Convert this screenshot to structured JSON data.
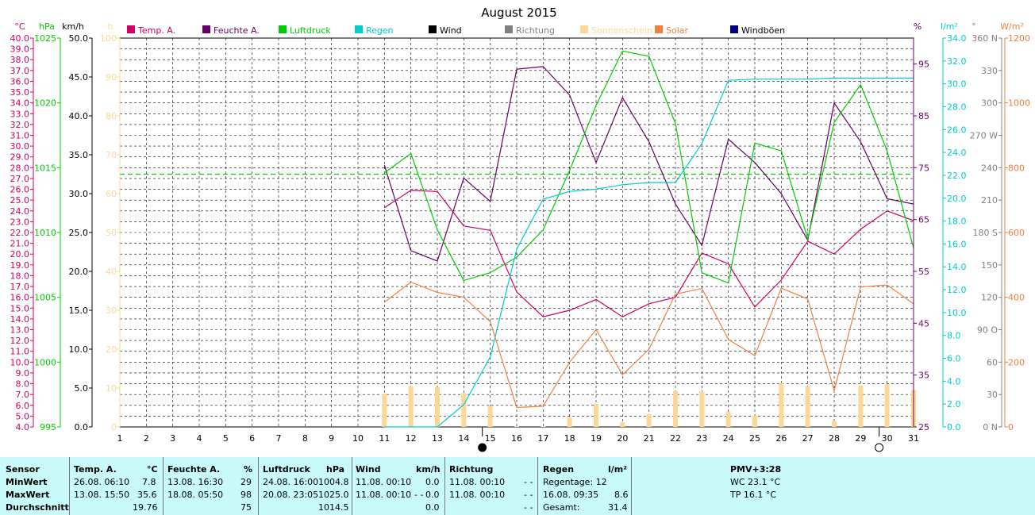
{
  "chart_data": {
    "type": "line",
    "title": "August 2015",
    "x": [
      11,
      12,
      13,
      14,
      15,
      16,
      17,
      18,
      19,
      20,
      21,
      22,
      23,
      24,
      25,
      26,
      27,
      28,
      29,
      30,
      31
    ],
    "x_ticks": [
      "1",
      "2",
      "3",
      "4",
      "5",
      "6",
      "7",
      "8",
      "9",
      "10",
      "11",
      "12",
      "13",
      "14",
      "15",
      "16",
      "17",
      "18",
      "19",
      "20",
      "21",
      "22",
      "23",
      "24",
      "25",
      "26",
      "27",
      "28",
      "29",
      "30",
      "31"
    ],
    "legend": [
      {
        "name": "Temp. A.",
        "color": "#cc0066"
      },
      {
        "name": "Feuchte A.",
        "color": "#660066"
      },
      {
        "name": "Luftdruck",
        "color": "#00cc00"
      },
      {
        "name": "Regen",
        "color": "#00cccc"
      },
      {
        "name": "Wind",
        "color": "#000000"
      },
      {
        "name": "Richtung",
        "color": "#808080"
      },
      {
        "name": "Sonnenschein",
        "color": "#fcd898"
      },
      {
        "name": "Solar",
        "color": "#f08040"
      },
      {
        "name": "Windböen",
        "color": "#000080"
      }
    ],
    "axes": {
      "temp": {
        "unit": "°C",
        "min": 4,
        "max": 40,
        "ticks": [
          "4.0",
          "5.0",
          "6.0",
          "7.0",
          "8.0",
          "9.0",
          "10.0",
          "11.0",
          "12.0",
          "13.0",
          "14.0",
          "15.0",
          "16.0",
          "17.0",
          "18.0",
          "19.0",
          "20.0",
          "21.0",
          "22.0",
          "23.0",
          "24.0",
          "25.0",
          "26.0",
          "27.0",
          "28.0",
          "29.0",
          "30.0",
          "31.0",
          "32.0",
          "33.0",
          "34.0",
          "35.0",
          "36.0",
          "37.0",
          "38.0",
          "39.0",
          "40.0"
        ]
      },
      "pressure": {
        "unit": "hPa",
        "min": 995,
        "max": 1025,
        "ticks": [
          "995",
          "1000",
          "1005",
          "1010",
          "1015",
          "1020",
          "1025"
        ]
      },
      "wind": {
        "unit": "km/h",
        "min": 0,
        "max": 50,
        "ticks": [
          "0.0",
          "5.0",
          "10.0",
          "15.0",
          "20.0",
          "25.0",
          "30.0",
          "35.0",
          "40.0",
          "45.0",
          "50.0"
        ]
      },
      "sunshine": {
        "unit": "h",
        "min": 0,
        "max": 100,
        "ticks": [
          "0",
          "10",
          "20",
          "30",
          "40",
          "50",
          "60",
          "70",
          "80",
          "90",
          "100"
        ]
      },
      "humidity": {
        "unit": "%",
        "min": 25,
        "max": 100,
        "ticks": [
          "25",
          "35",
          "45",
          "55",
          "65",
          "75",
          "85",
          "95"
        ]
      },
      "rain": {
        "unit": "l/m²",
        "min": 0,
        "max": 35,
        "ticks": [
          "0.0",
          "2.0",
          "4.0",
          "6.0",
          "8.0",
          "10.0",
          "12.0",
          "14.0",
          "16.0",
          "18.0",
          "20.0",
          "22.0",
          "24.0",
          "26.0",
          "28.0",
          "30.0",
          "32.0",
          "34.0"
        ]
      },
      "direction": {
        "unit": "°",
        "min": 0,
        "max": 360,
        "ticks": [
          "0 N",
          "30",
          "60",
          "90 O",
          "120",
          "150",
          "180 S",
          "210",
          "240",
          "270 W",
          "300",
          "330",
          "360 N"
        ]
      },
      "solar": {
        "unit": "W/m²",
        "min": 0,
        "max": 1200,
        "ticks": [
          "0",
          "200",
          "400",
          "600",
          "800",
          "1000",
          "1200"
        ]
      }
    },
    "series": [
      {
        "name": "Temp. A.",
        "axis": "temp",
        "color": "#cc0066",
        "values": [
          24.3,
          25.9,
          25.8,
          22.6,
          22.2,
          16.5,
          14.2,
          14.8,
          15.8,
          14.2,
          15.4,
          16.0,
          20.1,
          19.1,
          15.1,
          17.6,
          21.2,
          20.0,
          22.3,
          24.0,
          23.1
        ]
      },
      {
        "name": "Feuchte A.",
        "axis": "humidity",
        "color": "#660066",
        "values": [
          75.5,
          59,
          57,
          73,
          68.5,
          94,
          94.5,
          89,
          76,
          88.5,
          80,
          68,
          60,
          80.5,
          76,
          70,
          61,
          87.5,
          80,
          69,
          68
        ]
      },
      {
        "name": "Luftdruck",
        "axis": "pressure",
        "color": "#00cc00",
        "values": [
          1014.6,
          1016.1,
          1010.2,
          1006.3,
          1006.9,
          1008.1,
          1010.2,
          1014.8,
          1019.8,
          1024.0,
          1023.6,
          1018.4,
          1006.9,
          1006.1,
          1016.9,
          1016.3,
          1009.5,
          1018.5,
          1021.4,
          1016.3,
          1008.8
        ]
      },
      {
        "name": "Regen",
        "axis": "rain",
        "color": "#00cccc",
        "values": [
          0,
          0,
          0,
          2.0,
          6.3,
          16.0,
          20.5,
          21.2,
          21.4,
          21.8,
          22.0,
          22.0,
          25.5,
          31.2,
          31.3,
          31.3,
          31.3,
          31.4,
          31.4,
          31.4,
          31.4
        ]
      },
      {
        "name": "Solar",
        "axis": "solar",
        "color": "#f08040",
        "values": [
          385,
          447,
          415,
          400,
          325,
          60,
          64,
          200,
          300,
          161,
          240,
          410,
          427,
          270,
          220,
          428,
          395,
          112,
          432,
          438,
          380
        ]
      },
      {
        "name": "Sonnenschein",
        "axis": "sunshine",
        "color": "#fcd898",
        "type": "bar",
        "values": [
          8.5,
          10.5,
          10.2,
          8.7,
          5.3,
          0.2,
          0.1,
          2.4,
          5.9,
          1.2,
          3.3,
          9.2,
          9.1,
          3.9,
          2.9,
          11.3,
          10.4,
          1.5,
          10.6,
          11.0,
          9.5
        ]
      }
    ],
    "reference_line": {
      "axis": "pressure",
      "value": 1014.5,
      "color": "#00cc00",
      "style": "dashed"
    },
    "moon_phases": [
      {
        "day": 15,
        "phase": "new"
      },
      {
        "day": 30,
        "phase": "full"
      }
    ],
    "grid": true
  },
  "summary": {
    "sensor": {
      "header": "Sensor",
      "rows": [
        "MinWert",
        "MaxWert",
        "Durchschnitt"
      ]
    },
    "temp": {
      "header": "Temp. A.",
      "unit": "°C",
      "min_ts": "26.08.  06:10",
      "min_val": "7.8",
      "max_ts": "13.08.  15:50",
      "max_val": "35.6",
      "avg": "19.76"
    },
    "humidity": {
      "header": "Feuchte A.",
      "unit": "%",
      "min_ts": "13.08.  16:30",
      "min_val": "29",
      "max_ts": "18.08.  05:50",
      "max_val": "98",
      "avg": "75"
    },
    "pressure": {
      "header": "Luftdruck",
      "unit": "hPa",
      "min_ts": "24.08.  16:00",
      "min_val": "1004.8",
      "max_ts": "20.08.  23:05",
      "max_val": "1025.0",
      "avg": "1014.5"
    },
    "wind": {
      "header": "Wind",
      "unit": "km/h",
      "min_ts": "11.08.  00:10",
      "min_val": "0.0",
      "max_ts": "11.08.  00:10",
      "max_dir": "- -",
      "max_val": "0.0",
      "avg": "0.0"
    },
    "direction": {
      "header": "Richtung",
      "min_ts": "11.08.  00:10",
      "min_val": "- -",
      "max_ts": "11.08.  00:10",
      "max_val": "- -",
      "avg": "- -"
    },
    "rain": {
      "header": "Regen",
      "unit": "l/m²",
      "days": "Regentage: 12",
      "max_ts": "16.08.  09:35",
      "max_val": "8.6",
      "total_label": "Gesamt:",
      "total_val": "31.4"
    },
    "pmv": {
      "title": "PMV+3:28",
      "wc": "WC 23.1 °C",
      "tp": "TP 16.1 °C"
    }
  }
}
